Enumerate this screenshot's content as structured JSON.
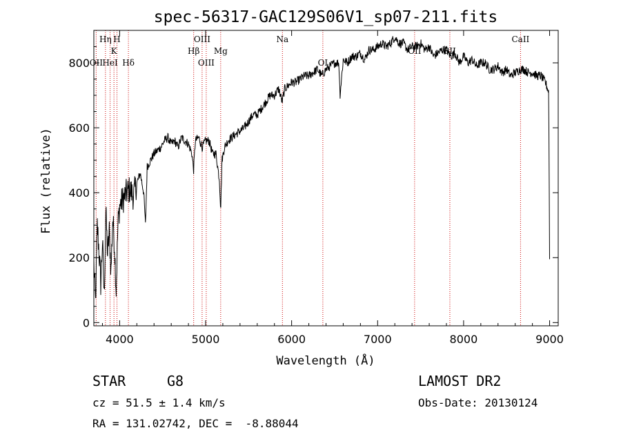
{
  "chart_data": {
    "type": "line",
    "title": "spec-56317-GAC129S06V1_sp07-211.fits",
    "xlabel": "Wavelength (Å)",
    "ylabel": "Flux (relative)",
    "xlim": [
      3700,
      9100
    ],
    "ylim": [
      -10,
      900
    ],
    "xticks": [
      4000,
      5000,
      6000,
      7000,
      8000,
      9000
    ],
    "yticks": [
      0,
      200,
      400,
      600,
      800
    ],
    "grid": false,
    "line_color": "#000000",
    "marker_color": "#cc0000",
    "series": [
      {
        "x": [
          3700,
          3720,
          3740,
          3760,
          3780,
          3800,
          3820,
          3840,
          3860,
          3880,
          3900,
          3920,
          3940,
          3960,
          3980,
          4000,
          4040,
          4080,
          4120,
          4160,
          4200,
          4240,
          4280,
          4300,
          4320,
          4360,
          4400,
          4440,
          4480,
          4520,
          4560,
          4600,
          4640,
          4680,
          4720,
          4760,
          4800,
          4840,
          4860,
          4880,
          4920,
          4960,
          5000,
          5040,
          5080,
          5120,
          5160,
          5175,
          5190,
          5220,
          5260,
          5300,
          5350,
          5400,
          5450,
          5500,
          5550,
          5600,
          5650,
          5700,
          5750,
          5800,
          5850,
          5890,
          5920,
          5960,
          6000,
          6050,
          6100,
          6150,
          6200,
          6250,
          6300,
          6350,
          6400,
          6450,
          6500,
          6550,
          6563,
          6600,
          6650,
          6700,
          6750,
          6800,
          6850,
          6900,
          6950,
          7000,
          7050,
          7100,
          7150,
          7200,
          7250,
          7300,
          7350,
          7400,
          7450,
          7500,
          7550,
          7600,
          7650,
          7700,
          7750,
          7800,
          7850,
          7900,
          7950,
          8000,
          8050,
          8100,
          8150,
          8200,
          8250,
          8300,
          8350,
          8400,
          8450,
          8500,
          8542,
          8600,
          8662,
          8700,
          8750,
          8800,
          8850,
          8900,
          8950,
          8990,
          9000
        ],
        "y": [
          180,
          60,
          300,
          220,
          120,
          250,
          80,
          340,
          210,
          280,
          160,
          320,
          240,
          100,
          300,
          360,
          380,
          400,
          410,
          390,
          430,
          460,
          400,
          300,
          480,
          500,
          520,
          530,
          540,
          560,
          570,
          550,
          560,
          540,
          570,
          560,
          550,
          520,
          470,
          560,
          570,
          540,
          560,
          560,
          520,
          520,
          440,
          350,
          500,
          540,
          560,
          570,
          580,
          590,
          600,
          620,
          640,
          640,
          660,
          680,
          700,
          700,
          720,
          680,
          720,
          730,
          740,
          740,
          750,
          760,
          760,
          770,
          780,
          760,
          780,
          790,
          800,
          800,
          700,
          810,
          800,
          820,
          820,
          830,
          810,
          840,
          840,
          850,
          860,
          850,
          860,
          880,
          860,
          860,
          840,
          850,
          850,
          860,
          840,
          850,
          820,
          830,
          840,
          840,
          820,
          830,
          800,
          820,
          800,
          810,
          790,
          800,
          800,
          780,
          780,
          790,
          770,
          780,
          760,
          770,
          780,
          780,
          770,
          770,
          760,
          760,
          740,
          710,
          200
        ]
      }
    ],
    "line_labels": [
      {
        "text": "OII",
        "wavelength": 3727,
        "row": 2
      },
      {
        "text": "Hη",
        "wavelength": 3835,
        "row": 0
      },
      {
        "text": "HeI",
        "wavelength": 3889,
        "row": 2
      },
      {
        "text": "K",
        "wavelength": 3934,
        "row": 1
      },
      {
        "text": "H",
        "wavelength": 3969,
        "row": 0
      },
      {
        "text": "Hδ",
        "wavelength": 4102,
        "row": 2
      },
      {
        "text": "Hβ",
        "wavelength": 4861,
        "row": 1
      },
      {
        "text": "OIII",
        "wavelength": 4959,
        "row": 0
      },
      {
        "text": "OIII",
        "wavelength": 5007,
        "row": 2
      },
      {
        "text": "Mg",
        "wavelength": 5175,
        "row": 1
      },
      {
        "text": "Na",
        "wavelength": 5893,
        "row": 0
      },
      {
        "text": "OI",
        "wavelength": 6363,
        "row": 2
      },
      {
        "text": "OII",
        "wavelength": 7430,
        "row": 1
      },
      {
        "text": "SII",
        "wavelength": 7840,
        "row": 1
      },
      {
        "text": "CaII",
        "wavelength": 8662,
        "row": 0
      }
    ],
    "marker_lines": [
      3727,
      3835,
      3889,
      3934,
      3969,
      4102,
      4861,
      4959,
      5007,
      5175,
      5893,
      6363,
      7430,
      7840,
      8662
    ]
  },
  "info": {
    "object_type": "STAR",
    "subclass": "G8",
    "survey": "LAMOST DR2",
    "redshift": "cz = 51.5 ± 1.4 km/s",
    "obs_date": "Obs-Date: 20130124",
    "coords": "RA = 131.02742, DEC =  -8.88044"
  }
}
